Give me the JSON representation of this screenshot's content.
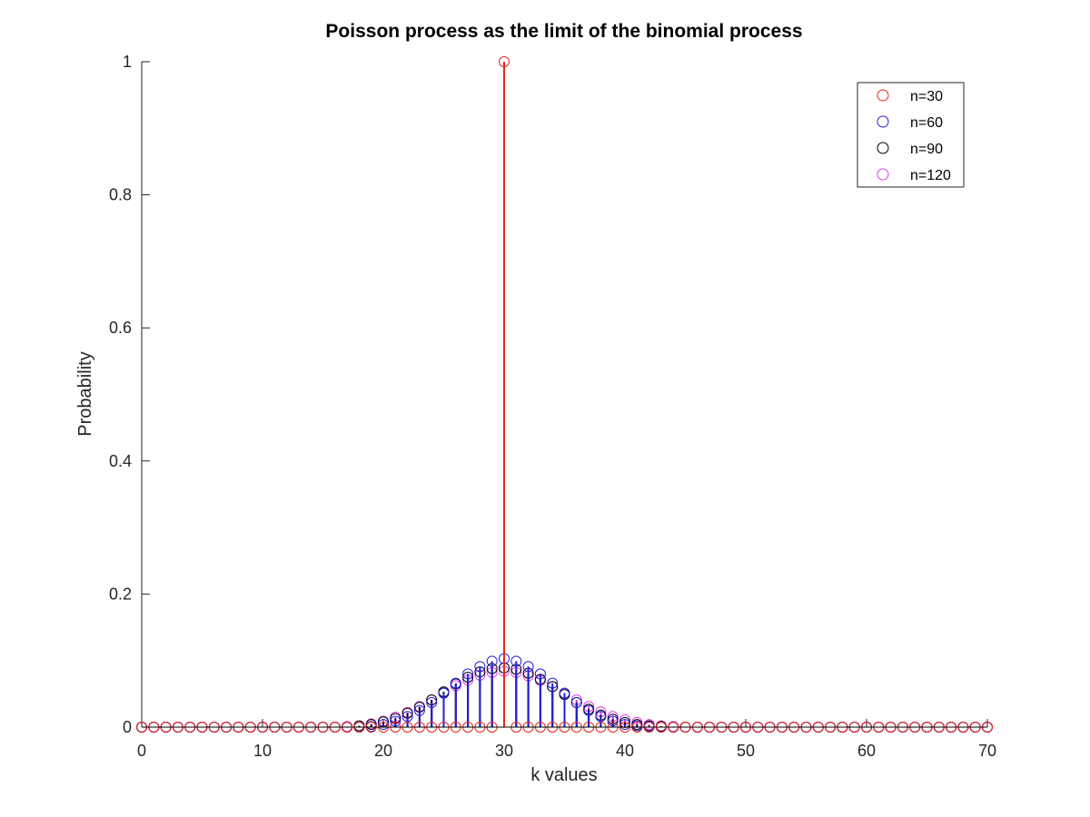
{
  "chart_data": {
    "type": "stem",
    "title": "Poisson process as the limit of the binomial process",
    "xlabel": "k values",
    "ylabel": "Probability",
    "xlim": [
      0,
      70
    ],
    "ylim": [
      0,
      1
    ],
    "xticks": [
      0,
      10,
      20,
      30,
      40,
      50,
      60,
      70
    ],
    "xtick_labels": [
      "0",
      "10",
      "20",
      "30",
      "40",
      "50",
      "60",
      "70"
    ],
    "yticks": [
      0,
      0.2,
      0.4,
      0.6,
      0.8,
      1
    ],
    "ytick_labels": [
      "0",
      "0.2",
      "0.4",
      "0.6",
      "0.8",
      "1"
    ],
    "grid": false,
    "legend_position": "top-right",
    "x": [
      0,
      1,
      2,
      3,
      4,
      5,
      6,
      7,
      8,
      9,
      10,
      11,
      12,
      13,
      14,
      15,
      16,
      17,
      18,
      19,
      20,
      21,
      22,
      23,
      24,
      25,
      26,
      27,
      28,
      29,
      30,
      31,
      32,
      33,
      34,
      35,
      36,
      37,
      38,
      39,
      40,
      41,
      42,
      43,
      44,
      45,
      46,
      47,
      48,
      49,
      50,
      51,
      52,
      53,
      54,
      55,
      56,
      57,
      58,
      59,
      60,
      61,
      62,
      63,
      64,
      65,
      66,
      67,
      68,
      69,
      70
    ],
    "series": [
      {
        "name": "n=30",
        "color": "#e8261a",
        "values": [
          0,
          0,
          0,
          0,
          0,
          0,
          0,
          0,
          0,
          0,
          0,
          0,
          0,
          0,
          0,
          0,
          0,
          0,
          0,
          0,
          0,
          0,
          0,
          0,
          0,
          0,
          0,
          0,
          0,
          0,
          1,
          0,
          0,
          0,
          0,
          0,
          0,
          0,
          0,
          0,
          0,
          0,
          0,
          0,
          0,
          0,
          0,
          0,
          0,
          0,
          0,
          0,
          0,
          0,
          0,
          0,
          0,
          0,
          0,
          0,
          0,
          0,
          0,
          0,
          0,
          0,
          0,
          0,
          0,
          0,
          0
        ]
      },
      {
        "name": "n=60",
        "color": "#1f1fd9",
        "values": [
          0,
          0,
          0,
          0,
          0,
          0,
          0,
          0,
          0,
          0,
          0,
          0,
          0,
          0,
          0,
          0,
          0,
          0,
          0,
          0.001,
          0.004,
          0.009,
          0.016,
          0.025,
          0.037,
          0.051,
          0.066,
          0.08,
          0.091,
          0.099,
          0.103,
          0.099,
          0.091,
          0.08,
          0.066,
          0.051,
          0.037,
          0.025,
          0.016,
          0.009,
          0.004,
          0.002,
          0.001,
          0,
          0,
          0,
          0,
          0,
          0,
          0,
          0,
          0,
          0,
          0,
          0,
          0,
          0,
          0,
          0,
          0,
          0,
          0,
          0,
          0,
          0,
          0,
          0,
          0,
          0,
          0,
          0
        ]
      },
      {
        "name": "n=90",
        "color": "#000000",
        "values": [
          0,
          0,
          0,
          0,
          0,
          0,
          0,
          0,
          0,
          0,
          0,
          0,
          0,
          0,
          0,
          0,
          0,
          0,
          0.002,
          0.004,
          0.008,
          0.013,
          0.021,
          0.03,
          0.041,
          0.053,
          0.065,
          0.075,
          0.083,
          0.088,
          0.089,
          0.087,
          0.081,
          0.072,
          0.061,
          0.049,
          0.037,
          0.027,
          0.018,
          0.012,
          0.007,
          0.004,
          0.002,
          0.001,
          0,
          0,
          0,
          0,
          0,
          0,
          0,
          0,
          0,
          0,
          0,
          0,
          0,
          0,
          0,
          0,
          0,
          0,
          0,
          0,
          0,
          0,
          0,
          0,
          0,
          0,
          0
        ]
      },
      {
        "name": "n=120",
        "color": "#e23cf0",
        "values": [
          0,
          0,
          0,
          0,
          0,
          0,
          0,
          0,
          0,
          0,
          0,
          0,
          0,
          0,
          0,
          0,
          0,
          0.001,
          0.002,
          0.005,
          0.009,
          0.015,
          0.022,
          0.031,
          0.041,
          0.052,
          0.062,
          0.071,
          0.078,
          0.082,
          0.084,
          0.082,
          0.077,
          0.07,
          0.061,
          0.051,
          0.041,
          0.031,
          0.023,
          0.016,
          0.011,
          0.007,
          0.004,
          0.002,
          0.001,
          0,
          0,
          0,
          0,
          0,
          0,
          0,
          0,
          0,
          0,
          0,
          0,
          0,
          0,
          0,
          0,
          0,
          0,
          0,
          0,
          0,
          0,
          0,
          0,
          0,
          0
        ]
      }
    ]
  }
}
